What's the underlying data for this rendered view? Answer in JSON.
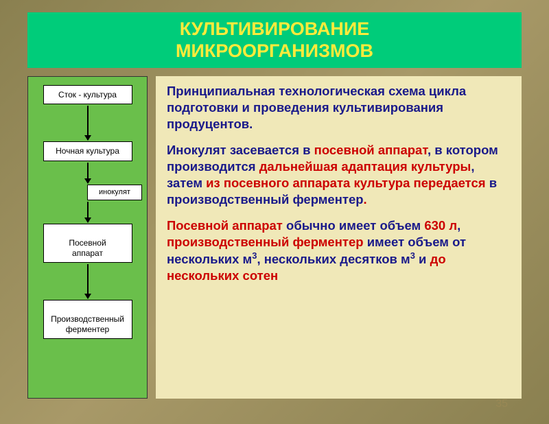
{
  "title": {
    "line1": "КУЛЬТИВИРОВАНИЕ",
    "line2": "МИКРООРГАНИЗМОВ"
  },
  "flowchart": {
    "bg_color": "#6abf4b",
    "box_bg": "#ffffff",
    "nodes": [
      {
        "id": "stock",
        "label": "Сток - культура",
        "arrow_after": 50
      },
      {
        "id": "night",
        "label": "Ночная культура",
        "arrow_after": 30
      },
      {
        "id": "inoc",
        "label": "инокулят",
        "small": true,
        "arrow_after": 30
      },
      {
        "id": "seed",
        "label": "Посевной\nаппарат",
        "arrow_after": 50
      },
      {
        "id": "ferm",
        "label": "Производственный\nферментер",
        "arrow_after": 0
      }
    ]
  },
  "text": {
    "p1": {
      "t1": "Принципиальная технологическая схема цикла подготовки и проведения культивирования продуцентов."
    },
    "p2": {
      "t1": "Инокулят засевается в ",
      "r1": "посевной аппарат",
      "t2": ", в котором производится ",
      "r2": "дальнейшая адаптация культуры",
      "t3": ", затем ",
      "r3": "из посевного аппарата культура передается",
      "t4": " в производственный ферментер",
      "t5": "."
    },
    "p3": {
      "r1": "Посевной аппарат ",
      "t1": "обычно имеет объем ",
      "r2": "630 л",
      "t2": ", ",
      "r3": "производственный ферментер ",
      "t3": "имеет объем от нескольких м",
      "sup1": "3",
      "t4": ", нескольких десятков м",
      "sup2": "3",
      "t5": " и ",
      "r4": "до нескольких сотен"
    }
  },
  "colors": {
    "title_bg": "#00cc7a",
    "title_fg": "#ffeb3b",
    "panel_bg": "#f0e8b8",
    "text_blue": "#1a1a8a",
    "text_red": "#cc0000"
  },
  "page_number": "35"
}
